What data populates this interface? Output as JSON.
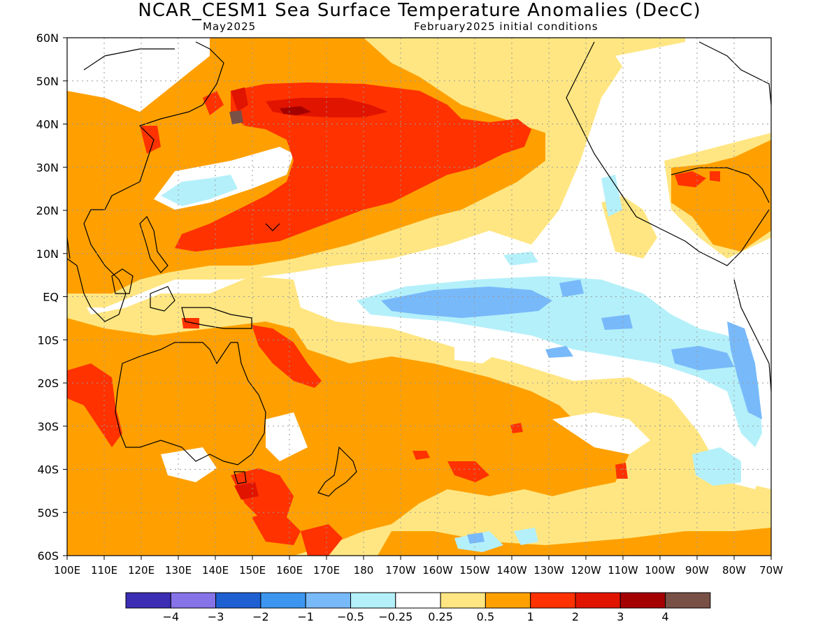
{
  "title": "NCAR_CESM1 Sea Surface Temperature Anomalies (DecC)",
  "subtitle_left": "May2025",
  "subtitle_right": "February2025 initial conditions",
  "map": {
    "lat_labels": [
      "60N",
      "50N",
      "40N",
      "30N",
      "20N",
      "10N",
      "EQ",
      "10S",
      "20S",
      "30S",
      "40S",
      "50S",
      "60S"
    ],
    "lon_labels": [
      "100E",
      "110E",
      "120E",
      "130E",
      "140E",
      "150E",
      "160E",
      "170E",
      "180",
      "170W",
      "160W",
      "150W",
      "140W",
      "130W",
      "120W",
      "110W",
      "100W",
      "90W",
      "80W",
      "70W"
    ],
    "lon_range": [
      "100E",
      "70W"
    ],
    "lat_range": [
      "60S",
      "60N"
    ],
    "grid": true
  },
  "legend": {
    "colors": [
      "#3b2db4",
      "#8673e8",
      "#1e5fd2",
      "#3c96f0",
      "#78b9fa",
      "#b4f0fa",
      "#ffffff",
      "#ffe682",
      "#ffa000",
      "#ff3200",
      "#e11400",
      "#a50000",
      "#785046"
    ],
    "labels": [
      "−4",
      "−3",
      "−2",
      "−1",
      "−0.5",
      "−0.25",
      "0.25",
      "0.5",
      "1",
      "2",
      "3",
      "4"
    ]
  },
  "palette": {
    "land_outline": "#000000",
    "c_pos_025": "#ffe682",
    "c_pos_05": "#ffa000",
    "c_pos_1": "#ff3200",
    "c_pos_2": "#e11400",
    "c_pos_3": "#a50000",
    "c_pos_4": "#785046",
    "c_neg_025": "#b4f0fa",
    "c_neg_05": "#78b9fa"
  }
}
